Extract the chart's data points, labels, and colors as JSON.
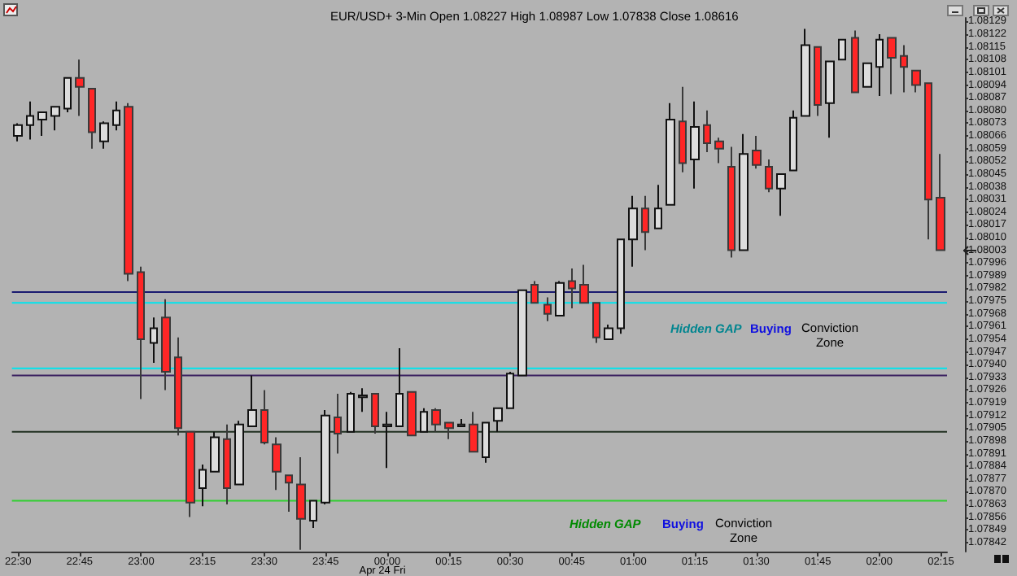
{
  "chart_data": {
    "type": "candlestick",
    "title": "EUR/USD+ 3-Min Open 1.08227 High 1.08987 Low 1.07838 Close 1.08616",
    "categories": [
      "22:30",
      null,
      null,
      null,
      null,
      "22:45",
      null,
      null,
      null,
      null,
      "23:00",
      null,
      null,
      null,
      null,
      "23:15",
      null,
      null,
      null,
      null,
      "23:30",
      null,
      null,
      null,
      null,
      "23:45",
      null,
      null,
      null,
      null,
      "00:00",
      null,
      null,
      null,
      null,
      "00:15",
      null,
      null,
      null,
      null,
      "00:30",
      null,
      null,
      null,
      null,
      "00:45",
      null,
      null,
      null,
      null,
      "01:00",
      null,
      null,
      null,
      null,
      "01:15",
      null,
      null,
      null,
      null,
      "01:30",
      null,
      null,
      null,
      null,
      "01:45",
      null,
      null,
      null,
      null,
      "02:00",
      null,
      null,
      null,
      null,
      "02:15"
    ],
    "ohlc": [
      [
        1.08066,
        1.08073,
        1.08063,
        1.08072
      ],
      [
        1.08072,
        1.08085,
        1.08064,
        1.08077
      ],
      [
        1.08075,
        1.08079,
        1.08066,
        1.08079
      ],
      [
        1.08077,
        1.08082,
        1.08069,
        1.08082
      ],
      [
        1.08081,
        1.08098,
        1.08079,
        1.08098
      ],
      [
        1.08098,
        1.08108,
        1.08077,
        1.08093
      ],
      [
        1.08092,
        1.08092,
        1.08059,
        1.08068
      ],
      [
        1.08063,
        1.08074,
        1.08059,
        1.08073
      ],
      [
        1.08072,
        1.08085,
        1.08069,
        1.0808
      ],
      [
        1.08082,
        1.08084,
        1.07986,
        1.0799
      ],
      [
        1.07991,
        1.07994,
        1.07921,
        1.07954
      ],
      [
        1.07952,
        1.07966,
        1.07941,
        1.0796
      ],
      [
        1.07966,
        1.07976,
        1.07926,
        1.07936
      ],
      [
        1.07944,
        1.07955,
        1.07901,
        1.07905
      ],
      [
        1.07903,
        1.07903,
        1.07856,
        1.07864
      ],
      [
        1.07872,
        1.07885,
        1.07862,
        1.07882
      ],
      [
        1.07881,
        1.07903,
        1.07881,
        1.079
      ],
      [
        1.07899,
        1.07907,
        1.07863,
        1.07872
      ],
      [
        1.07874,
        1.07909,
        1.07874,
        1.07907
      ],
      [
        1.07906,
        1.07934,
        1.07906,
        1.07915
      ],
      [
        1.07915,
        1.07926,
        1.07896,
        1.07897
      ],
      [
        1.07896,
        1.079,
        1.07871,
        1.07881
      ],
      [
        1.07879,
        1.07879,
        1.07859,
        1.07875
      ],
      [
        1.07874,
        1.07889,
        1.07838,
        1.07855
      ],
      [
        1.07854,
        1.07865,
        1.0785,
        1.07865
      ],
      [
        1.07864,
        1.07915,
        1.07863,
        1.07912
      ],
      [
        1.07911,
        1.07924,
        1.07891,
        1.07902
      ],
      [
        1.07903,
        1.07925,
        1.07903,
        1.07924
      ],
      [
        1.07922,
        1.07927,
        1.07914,
        1.07923
      ],
      [
        1.07924,
        1.07924,
        1.07902,
        1.07906
      ],
      [
        1.07906,
        1.07914,
        1.07883,
        1.07907
      ],
      [
        1.07906,
        1.07949,
        1.07906,
        1.07924
      ],
      [
        1.07925,
        1.07925,
        1.07901,
        1.07901
      ],
      [
        1.07903,
        1.07916,
        1.07903,
        1.07914
      ],
      [
        1.07915,
        1.07916,
        1.07903,
        1.07907
      ],
      [
        1.07908,
        1.07908,
        1.07899,
        1.07905
      ],
      [
        1.07906,
        1.0791,
        1.07906,
        1.07907
      ],
      [
        1.07907,
        1.07914,
        1.07892,
        1.07892
      ],
      [
        1.07889,
        1.07908,
        1.07886,
        1.07908
      ],
      [
        1.07909,
        1.07916,
        1.07903,
        1.07916
      ],
      [
        1.07916,
        1.07936,
        1.07916,
        1.07935
      ],
      [
        1.07934,
        1.07981,
        1.07934,
        1.07981
      ],
      [
        1.07984,
        1.07986,
        1.07974,
        1.07974
      ],
      [
        1.07973,
        1.07977,
        1.07964,
        1.07968
      ],
      [
        1.07967,
        1.07986,
        1.07967,
        1.07985
      ],
      [
        1.07986,
        1.07993,
        1.07971,
        1.07982
      ],
      [
        1.07984,
        1.07995,
        1.07974,
        1.07974
      ],
      [
        1.07974,
        1.07974,
        1.07952,
        1.07955
      ],
      [
        1.07954,
        1.07962,
        1.07954,
        1.0796
      ],
      [
        1.0796,
        1.08009,
        1.07957,
        1.08009
      ],
      [
        1.08009,
        1.08033,
        1.07994,
        1.08026
      ],
      [
        1.08026,
        1.08033,
        1.08003,
        1.08013
      ],
      [
        1.08015,
        1.08039,
        1.08015,
        1.08026
      ],
      [
        1.08028,
        1.08084,
        1.08028,
        1.08075
      ],
      [
        1.08074,
        1.08093,
        1.08046,
        1.08051
      ],
      [
        1.08053,
        1.08085,
        1.08037,
        1.08071
      ],
      [
        1.08072,
        1.0808,
        1.08057,
        1.08062
      ],
      [
        1.08063,
        1.08065,
        1.08051,
        1.08059
      ],
      [
        1.08049,
        1.0806,
        1.07999,
        1.08003
      ],
      [
        1.08003,
        1.08067,
        1.08003,
        1.08056
      ],
      [
        1.08058,
        1.08066,
        1.08048,
        1.0805
      ],
      [
        1.08049,
        1.08053,
        1.08035,
        1.08037
      ],
      [
        1.08037,
        1.08045,
        1.08022,
        1.08045
      ],
      [
        1.08047,
        1.0808,
        1.08047,
        1.08076
      ],
      [
        1.08077,
        1.08125,
        1.08077,
        1.08116
      ],
      [
        1.08115,
        1.08115,
        1.08077,
        1.08083
      ],
      [
        1.08084,
        1.08107,
        1.08065,
        1.08107
      ],
      [
        1.08108,
        1.08119,
        1.08108,
        1.08119
      ],
      [
        1.0812,
        1.08124,
        1.0809,
        1.0809
      ],
      [
        1.08093,
        1.08106,
        1.08093,
        1.08106
      ],
      [
        1.08104,
        1.08122,
        1.08088,
        1.08119
      ],
      [
        1.0812,
        1.0812,
        1.08089,
        1.08109
      ],
      [
        1.0811,
        1.08116,
        1.0809,
        1.08104
      ],
      [
        1.08102,
        1.08102,
        1.0809,
        1.08094
      ],
      [
        1.08095,
        1.08095,
        1.08009,
        1.08031
      ],
      [
        1.08032,
        1.08056,
        1.08003,
        1.08003
      ]
    ],
    "ylim": [
      1.07837,
      1.08131
    ],
    "yticks": [
      1.07842,
      1.07849,
      1.07856,
      1.07863,
      {
        "value": 1.0787,
        "label": "1.07870"
      },
      1.07877,
      1.07884,
      1.07891,
      1.07898,
      1.07905,
      1.07912,
      1.07919,
      1.07926,
      1.07933,
      {
        "value": 1.0794,
        "label": "1.07940"
      },
      1.07947,
      1.07954,
      1.07961,
      1.07968,
      1.07975,
      1.07982,
      1.07989,
      1.07996,
      1.08003,
      {
        "value": 1.0801,
        "label": "1.08010"
      },
      1.08017,
      1.08024,
      1.08031,
      1.08038,
      1.08045,
      1.08052,
      1.08059,
      1.08066,
      1.08073,
      {
        "value": 1.0808,
        "label": "1.08080"
      },
      1.08087,
      1.08094,
      1.08101,
      1.08108,
      1.08115,
      1.08122,
      1.08129
    ],
    "ref_lines": [
      {
        "axis": "y",
        "value": 1.0798,
        "color": "#1a1a70"
      },
      {
        "axis": "y",
        "value": 1.07974,
        "color": "#00e5ee"
      },
      {
        "axis": "y",
        "value": 1.07938,
        "color": "#00e5ee"
      },
      {
        "axis": "y",
        "value": 1.07934,
        "color": "#3a2060"
      },
      {
        "axis": "y",
        "value": 1.07903,
        "color": "#203020"
      },
      {
        "axis": "y",
        "value": 1.07865,
        "color": "#30d030"
      }
    ],
    "annotations": [
      "Hidden GAP",
      "Buying",
      "Conviction Zone",
      "Hidden GAP",
      "Buying",
      "Conviction Zone",
      "Apr 24 Fri"
    ]
  }
}
